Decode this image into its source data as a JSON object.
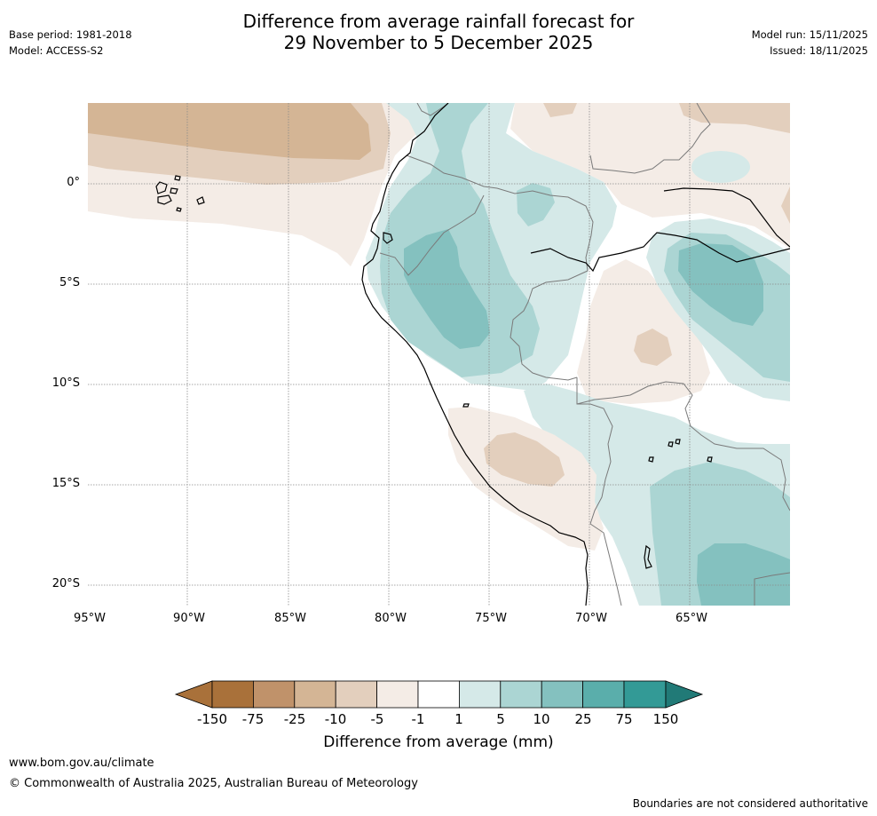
{
  "header": {
    "title_line1": "Difference from average rainfall forecast for",
    "title_line2": "29 November to 5 December 2025",
    "base_period": "Base period: 1981-2018",
    "model": "Model: ACCESS-S2",
    "model_run": "Model run: 15/11/2025",
    "issued": "Issued: 18/11/2025"
  },
  "map": {
    "lat_labels": [
      "0°",
      "5°S",
      "10°S",
      "15°S",
      "20°S"
    ],
    "lon_labels": [
      "95°W",
      "90°W",
      "85°W",
      "80°W",
      "75°W",
      "70°W",
      "65°W"
    ],
    "colors": {
      "neg150": "#a9713a",
      "neg75": "#c0926a",
      "neg25": "#d4b595",
      "neg10": "#e3cfbd",
      "neg5": "#f4ece6",
      "neutral": "#ffffff",
      "pos1": "#d5e9e8",
      "pos5": "#abd5d3",
      "pos10": "#84c1bf",
      "pos25": "#5aaeab",
      "pos75": "#339a96",
      "pos150": "#217a77"
    }
  },
  "colorbar": {
    "ticks": [
      "-150",
      "-75",
      "-25",
      "-10",
      "-5",
      "-1",
      "1",
      "5",
      "10",
      "25",
      "75",
      "150"
    ],
    "label": "Difference from average (mm)"
  },
  "footer": {
    "url": "www.bom.gov.au/climate",
    "copyright": "© Commonwealth of Australia 2025, Australian Bureau of Meteorology",
    "disclaimer": "Boundaries are not considered authoritative"
  }
}
